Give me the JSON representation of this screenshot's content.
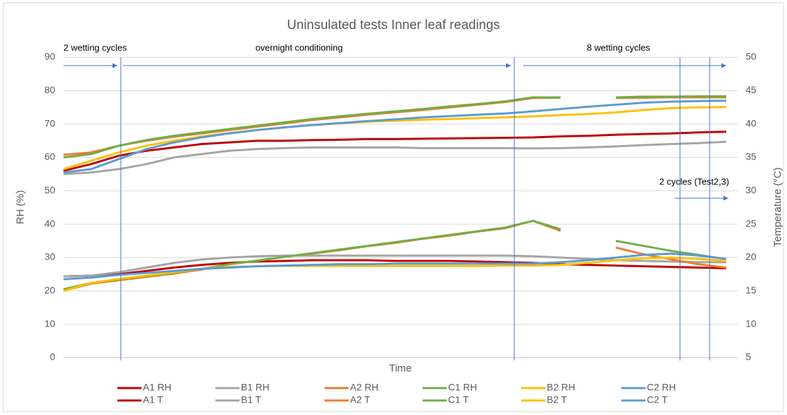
{
  "chart_data": {
    "type": "line",
    "title": "Uninsulated tests Inner leaf readings",
    "x_label": "Time",
    "y_label": "RH (%)",
    "y2_label": "Temperature (°C)",
    "annotations": [
      "2 wetting cycles",
      "overnight conditioning",
      "8 wetting cycles",
      "2 cycles (Test2,3)"
    ],
    "categories": [
      null,
      null,
      null,
      null,
      null,
      null,
      null,
      null,
      null,
      null,
      null,
      null,
      null,
      null,
      null,
      null,
      null,
      null,
      null,
      null,
      null,
      null,
      null,
      null,
      null
    ],
    "ylim": [
      0,
      90
    ],
    "yticks": [
      0,
      10,
      20,
      30,
      40,
      50,
      60,
      70,
      80,
      90
    ],
    "y2lim": [
      5,
      50
    ],
    "y2ticks": [
      5,
      10,
      15,
      20,
      25,
      30,
      35,
      40,
      45,
      50
    ],
    "grid": true,
    "legend": "bottom",
    "series": [
      {
        "name": "A1 RH",
        "color": "#c00000",
        "values": [
          56,
          58,
          60.5,
          62,
          63,
          64,
          64.5,
          65,
          65,
          65.2,
          65.3,
          65.5,
          65.5,
          65.6,
          65.7,
          65.8,
          65.9,
          66,
          66.3,
          66.5,
          66.8,
          67,
          67.2,
          67.5,
          67.7
        ]
      },
      {
        "name": "B1 RH",
        "color": "#a5a5a5",
        "values": [
          55,
          55.5,
          56.5,
          58,
          60,
          61,
          62,
          62.5,
          62.8,
          63,
          63,
          63,
          63,
          62.8,
          62.8,
          62.8,
          62.8,
          62.7,
          62.8,
          63,
          63.3,
          63.7,
          64,
          64.3,
          64.7
        ]
      },
      {
        "name": "A2 RH",
        "color": "#ed7d31",
        "values": [
          60.8,
          61.5,
          63.5,
          65,
          66.2,
          67.2,
          68.2,
          69.2,
          70.2,
          71.2,
          72,
          72.8,
          73.5,
          74.2,
          75,
          75.8,
          76.6,
          77.8,
          77.9,
          null,
          77.8,
          77.9,
          78,
          78,
          78
        ]
      },
      {
        "name": "C1 RH",
        "color": "#70ad47",
        "values": [
          60,
          61,
          63.5,
          65.2,
          66.5,
          67.5,
          68.5,
          69.5,
          70.5,
          71.5,
          72.3,
          73.1,
          73.8,
          74.5,
          75.3,
          76,
          76.8,
          78,
          78,
          null,
          78,
          78.2,
          78.2,
          78.3,
          78.3
        ]
      },
      {
        "name": "B2 RH",
        "color": "#ffc000",
        "values": [
          56.5,
          59,
          61.5,
          63.5,
          65,
          66.3,
          67.3,
          68.2,
          69,
          69.7,
          70.2,
          70.7,
          71,
          71.3,
          71.5,
          71.8,
          72,
          72.3,
          72.7,
          73,
          73.5,
          74.2,
          74.8,
          75,
          75.1
        ]
      },
      {
        "name": "C2 RH",
        "color": "#5b9bd5",
        "values": [
          55.5,
          56.5,
          59.5,
          62.5,
          64.5,
          66,
          67.2,
          68.2,
          69,
          69.7,
          70.3,
          70.9,
          71.4,
          72,
          72.4,
          72.8,
          73.2,
          73.8,
          74.5,
          75.2,
          75.8,
          76.4,
          76.7,
          76.9,
          77
        ]
      },
      {
        "name": "A1 T",
        "color": "#c00000",
        "axis": "y2",
        "values": [
          17.2,
          17.3,
          17.5,
          18,
          18.5,
          18.9,
          19.2,
          19.4,
          19.5,
          19.6,
          19.6,
          19.6,
          19.5,
          19.5,
          19.5,
          19.4,
          19.3,
          19.2,
          19,
          18.9,
          18.8,
          18.7,
          18.6,
          18.5,
          18.4
        ]
      },
      {
        "name": "B1 T",
        "color": "#a5a5a5",
        "axis": "y2",
        "values": [
          17.2,
          17.3,
          17.8,
          18.5,
          19.2,
          19.7,
          20,
          20.2,
          20.3,
          20.3,
          20.3,
          20.3,
          20.3,
          20.3,
          20.3,
          20.3,
          20.3,
          20.2,
          20,
          19.8,
          19.6,
          19.5,
          19.4,
          19.3,
          19.3
        ]
      },
      {
        "name": "A2 T",
        "color": "#ed7d31",
        "axis": "y2",
        "values": [
          15,
          16.1,
          16.6,
          17.1,
          17.6,
          18.2,
          19,
          19.5,
          20.1,
          20.6,
          21.1,
          21.7,
          22.2,
          22.8,
          23.3,
          23.9,
          24.4,
          25.5,
          24,
          null,
          21.5,
          20.5,
          19.75,
          19,
          18.5
        ]
      },
      {
        "name": "C1 T",
        "color": "#70ad47",
        "axis": "y2",
        "values": [
          15.25,
          16.2,
          16.7,
          17.2,
          17.7,
          18.3,
          19,
          19.55,
          20.1,
          20.65,
          21.2,
          21.75,
          22.3,
          22.85,
          23.4,
          23.95,
          24.5,
          25.5,
          24.25,
          null,
          22.5,
          21.75,
          21,
          20.4,
          19.75
        ]
      },
      {
        "name": "B2 T",
        "color": "#ffc000",
        "axis": "y2",
        "values": [
          15,
          16.2,
          16.8,
          17.3,
          17.8,
          18.3,
          18.6,
          18.7,
          18.75,
          18.75,
          18.75,
          18.75,
          18.75,
          18.75,
          18.75,
          18.75,
          18.8,
          18.8,
          18.9,
          19.2,
          19.6,
          19.9,
          20,
          19.8,
          19.5
        ]
      },
      {
        "name": "C2 T",
        "color": "#5b9bd5",
        "axis": "y2",
        "values": [
          16.75,
          17,
          17.4,
          17.7,
          18,
          18.3,
          18.5,
          18.7,
          18.8,
          18.9,
          19,
          19,
          19.1,
          19.1,
          19.1,
          19.1,
          19.1,
          19.1,
          19.3,
          19.6,
          20,
          20.4,
          20.6,
          20.3,
          19.8
        ]
      }
    ]
  }
}
